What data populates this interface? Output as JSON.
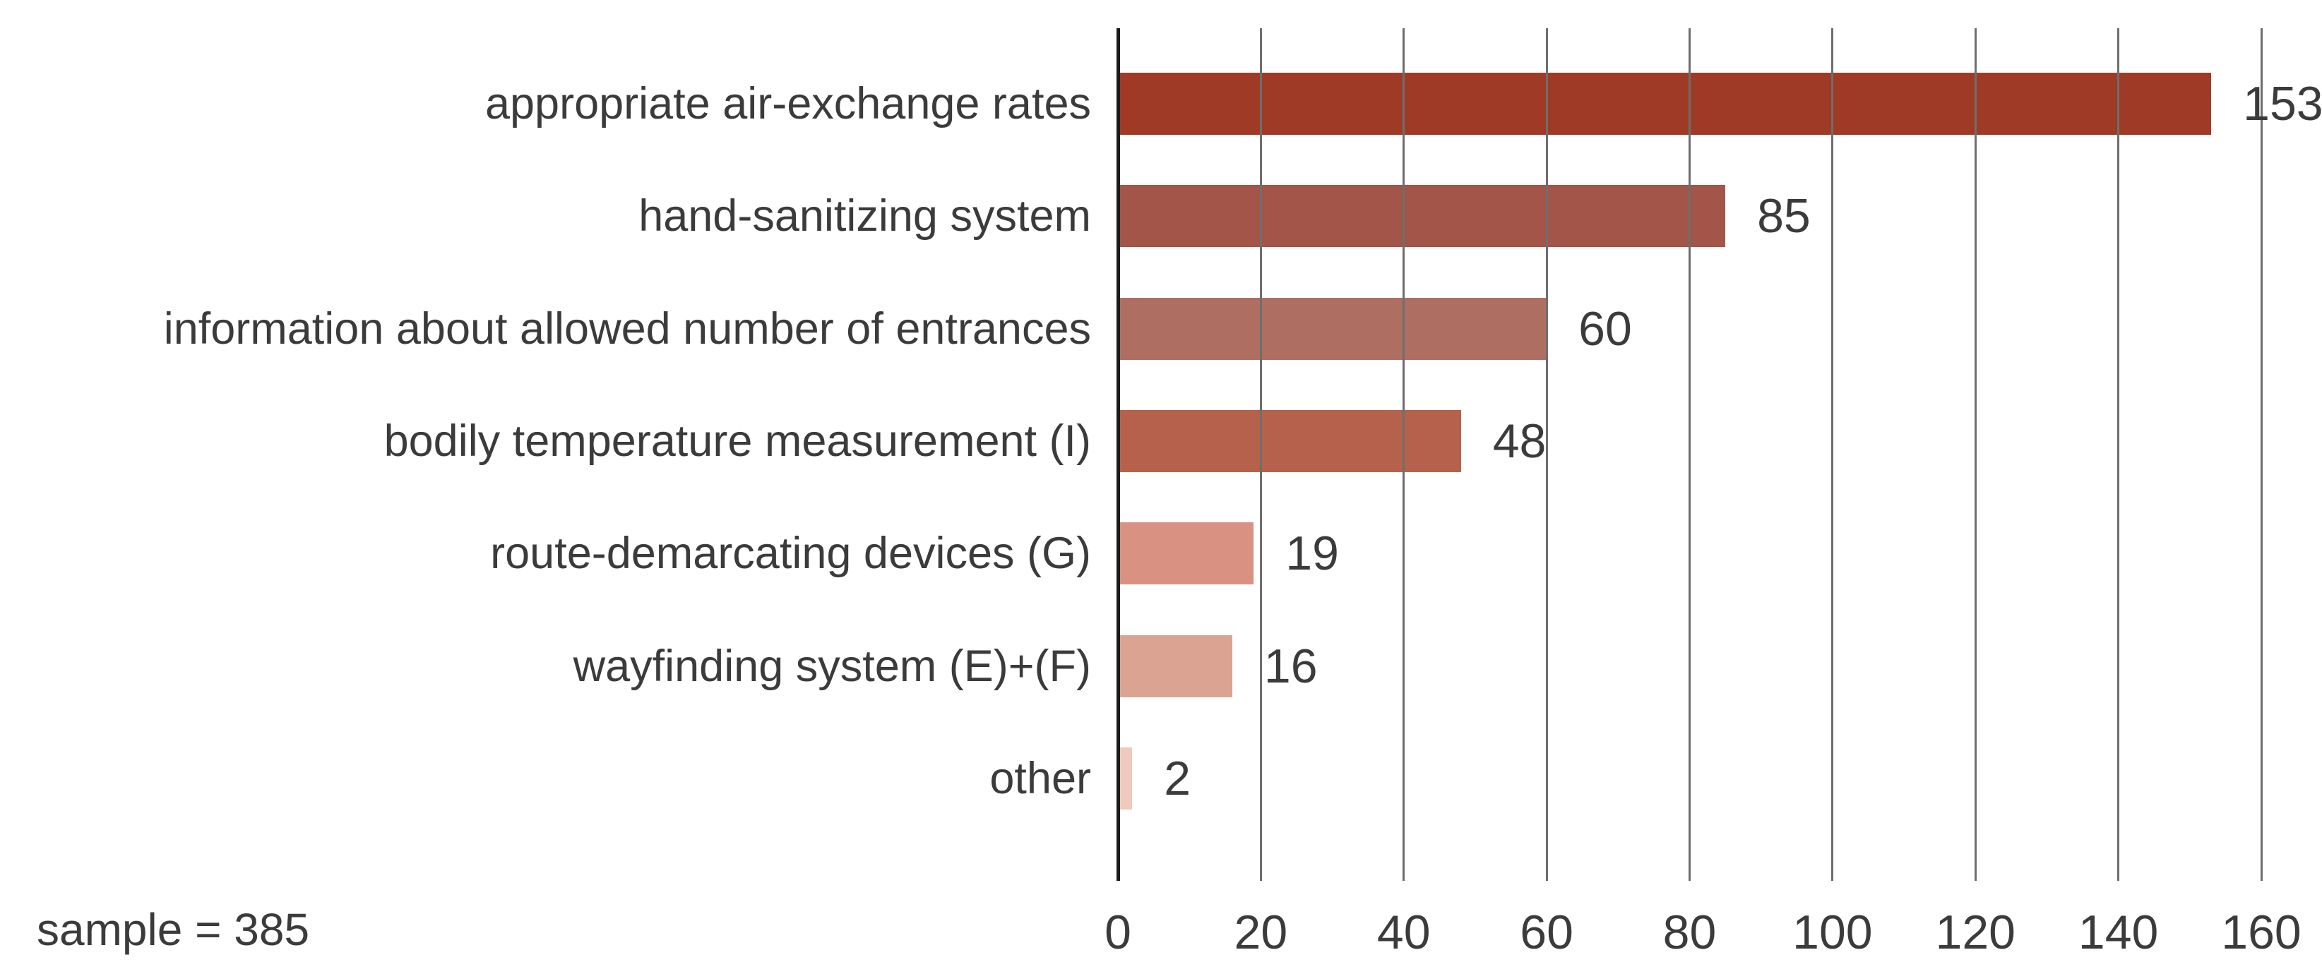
{
  "chart_data": {
    "type": "bar",
    "orientation": "horizontal",
    "title": "",
    "xlabel": "",
    "ylabel": "",
    "categories": [
      "appropriate air-exchange rates",
      "hand-sanitizing system",
      "information about allowed number of entrances",
      "bodily temperature measurement (I)",
      "route-demarcating devices (G)",
      "wayfinding system (E)+(F)",
      "other"
    ],
    "values": [
      153,
      85,
      60,
      48,
      19,
      16,
      2
    ],
    "data_labels": [
      "153",
      "85",
      "60",
      "48",
      "19",
      "16",
      "2"
    ],
    "bar_colors": [
      "#9e3a26",
      "#a25548",
      "#ae6f62",
      "#b6614b",
      "#d99181",
      "#dba392",
      "#f0c9bd"
    ],
    "xlim": [
      0,
      160
    ],
    "x_ticks": [
      0,
      20,
      40,
      60,
      80,
      100,
      120,
      140,
      160
    ],
    "grid": true,
    "legend": false,
    "footnote": "sample = 385"
  },
  "colors": {
    "axis_line": "#1a1a1a",
    "gridline": "#6e6e6e",
    "text": "#3b3b3b",
    "background": "#ffffff"
  }
}
